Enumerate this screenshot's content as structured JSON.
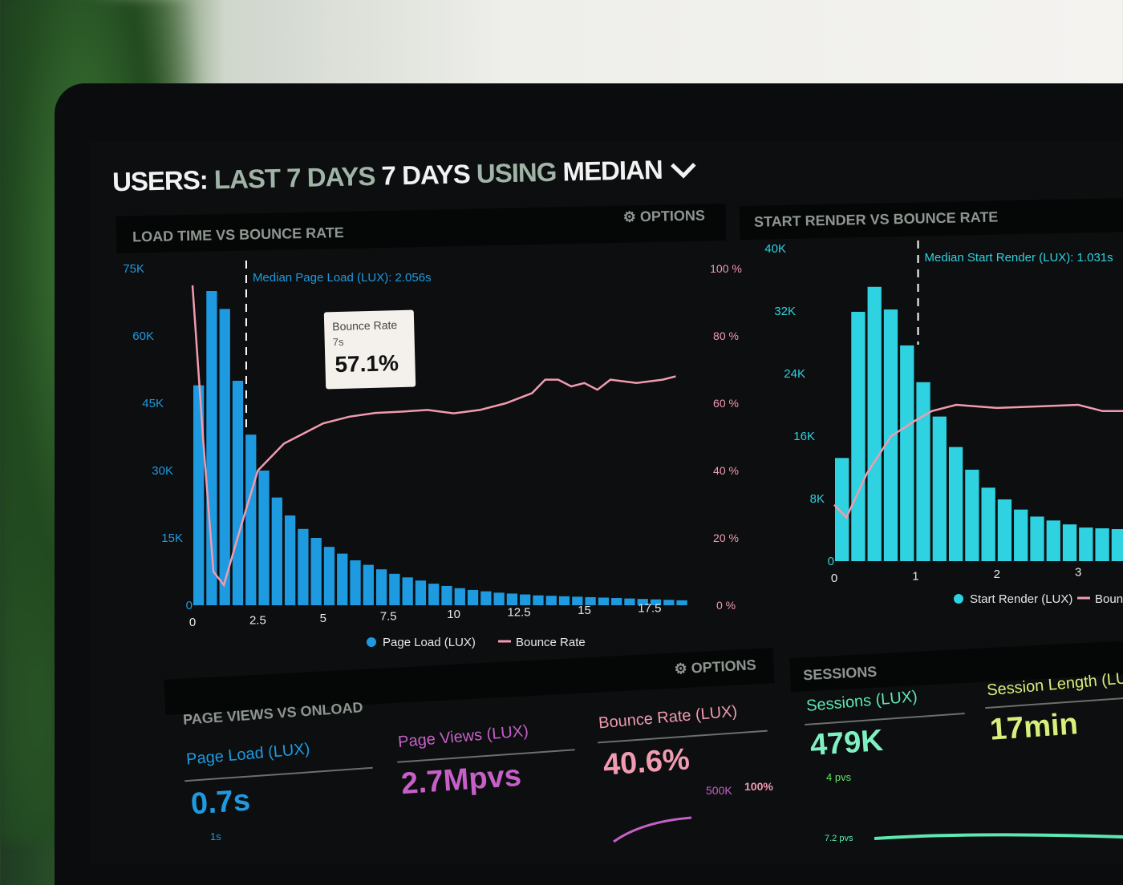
{
  "header": {
    "title_users": "USERS:",
    "title_range": "LAST 7 DAYS",
    "title_using": "USING",
    "title_median": "MEDIAN",
    "dropdown_icon": "chevron-down-icon"
  },
  "colors": {
    "page_load": "#1e9ae0",
    "start_render": "#2fd2e0",
    "bounce": "#f19bb0",
    "sessions": "#5ee8b0",
    "session_length": "#d8f07a",
    "page_views": "#c660c8"
  },
  "chart_data": [
    {
      "type": "bar",
      "title": "LOAD TIME VS BOUNCE RATE",
      "options_label": "OPTIONS",
      "annotation": "Median Page Load (LUX): 2.056s",
      "median_x": 2.056,
      "x_ticks": [
        "0",
        "2.5",
        "5",
        "7.5",
        "10",
        "12.5",
        "15",
        "17.5"
      ],
      "x_tick_values": [
        0,
        2.5,
        5,
        7.5,
        10,
        12.5,
        15,
        17.5
      ],
      "y_ticks": [
        "0",
        "15K",
        "30K",
        "45K",
        "60K",
        "75K"
      ],
      "y_tick_values": [
        0,
        15000,
        30000,
        45000,
        60000,
        75000
      ],
      "y2_ticks": [
        "0 %",
        "20 %",
        "40 %",
        "60 %",
        "80 %",
        "100 %"
      ],
      "y2_tick_values": [
        0,
        20,
        40,
        60,
        80,
        100
      ],
      "xlim": [
        0,
        19.5
      ],
      "ylim": [
        0,
        75000
      ],
      "y2lim": [
        0,
        100
      ],
      "series": [
        {
          "name": "Page Load (LUX)",
          "type": "bar",
          "bin_width": 0.5,
          "x": [
            0,
            0.5,
            1,
            1.5,
            2,
            2.5,
            3,
            3.5,
            4,
            4.5,
            5,
            5.5,
            6,
            6.5,
            7,
            7.5,
            8,
            8.5,
            9,
            9.5,
            10,
            10.5,
            11,
            11.5,
            12,
            12.5,
            13,
            13.5,
            14,
            14.5,
            15,
            15.5,
            16,
            16.5,
            17,
            17.5,
            18,
            18.5
          ],
          "values": [
            49000,
            70000,
            66000,
            50000,
            38000,
            30000,
            24000,
            20000,
            17000,
            15000,
            13000,
            11500,
            10000,
            9000,
            8000,
            7000,
            6200,
            5500,
            4800,
            4300,
            3800,
            3400,
            3100,
            2800,
            2600,
            2400,
            2200,
            2100,
            2000,
            1900,
            1800,
            1700,
            1600,
            1500,
            1400,
            1300,
            1200,
            1100
          ]
        },
        {
          "name": "Bounce Rate",
          "type": "line",
          "x": [
            0,
            0.4,
            0.8,
            1.2,
            1.8,
            2.5,
            3.5,
            5,
            6,
            7,
            8,
            9,
            10,
            11,
            12,
            13,
            13.5,
            14,
            14.5,
            15,
            15.5,
            16,
            17,
            18,
            18.5
          ],
          "values": [
            95,
            50,
            10,
            6,
            22,
            40,
            48,
            54,
            56,
            57.1,
            57.5,
            58,
            57,
            58,
            60,
            63,
            67,
            67,
            65,
            66,
            64,
            67,
            66,
            67,
            68
          ]
        }
      ],
      "tooltip": {
        "series": "Bounce Rate",
        "x_label": "7s",
        "value": "57.1%"
      },
      "legend": [
        "Page Load (LUX)",
        "Bounce Rate"
      ],
      "legend_position": "bottom"
    },
    {
      "type": "bar",
      "title": "START RENDER VS BOUNCE RATE",
      "annotation": "Median Start Render (LUX): 1.031s",
      "median_x": 1.031,
      "x_ticks": [
        "0",
        "1",
        "2",
        "3"
      ],
      "x_tick_values": [
        0,
        1,
        2,
        3
      ],
      "y_ticks": [
        "0",
        "8K",
        "16K",
        "24K",
        "32K",
        "40K"
      ],
      "y_tick_values": [
        0,
        8000,
        16000,
        24000,
        32000,
        40000
      ],
      "xlim": [
        0,
        3.6
      ],
      "ylim": [
        0,
        40000
      ],
      "y2lim": [
        0,
        100
      ],
      "series": [
        {
          "name": "Start Render (LUX)",
          "type": "bar",
          "bin_width": 0.2,
          "x": [
            0,
            0.2,
            0.4,
            0.6,
            0.8,
            1.0,
            1.2,
            1.4,
            1.6,
            1.8,
            2.0,
            2.2,
            2.4,
            2.6,
            2.8,
            3.0,
            3.2,
            3.4
          ],
          "values": [
            13200,
            31900,
            35100,
            32200,
            27600,
            22900,
            18500,
            14600,
            11700,
            9400,
            7900,
            6600,
            5700,
            5200,
            4700,
            4300,
            4200,
            4100
          ]
        },
        {
          "name": "Bounce Rate",
          "type": "line",
          "x": [
            0,
            0.15,
            0.4,
            0.7,
            1.0,
            1.2,
            1.5,
            2,
            2.5,
            3,
            3.3,
            3.6
          ],
          "values": [
            18,
            14,
            28,
            40,
            45,
            48,
            50,
            49,
            49.5,
            50,
            48,
            48
          ]
        }
      ],
      "legend": [
        "Start Render (LUX)",
        "Bounce"
      ],
      "legend_position": "bottom"
    }
  ],
  "bottom_left": {
    "title": "PAGE VIEWS VS ONLOAD",
    "options_label": "OPTIONS",
    "kpis": [
      {
        "label": "Page Load (LUX)",
        "value": "0.7s",
        "sub": "1s"
      },
      {
        "label": "Page Views (LUX)",
        "value": "2.7Mpvs"
      },
      {
        "label": "Bounce Rate (LUX)",
        "value": "40.6%",
        "axis_left": "500K",
        "axis_right": "100%"
      }
    ]
  },
  "sessions": {
    "title": "SESSIONS",
    "kpis": [
      {
        "label": "Sessions (LUX)",
        "value": "479K",
        "sub": "4 pvs",
        "sub2": "7.2 pvs"
      },
      {
        "label": "Session Length (LUX)",
        "value": "17min"
      }
    ]
  }
}
